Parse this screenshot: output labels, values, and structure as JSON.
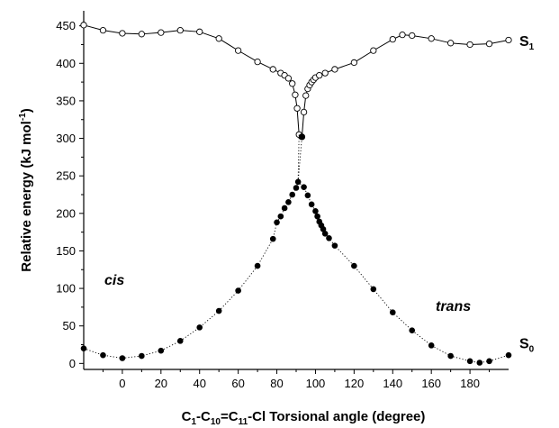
{
  "chart_data": {
    "type": "scatter",
    "xlabel_parts": [
      "C",
      "1",
      "-C",
      "10",
      "=C",
      "11",
      "-Cl  Torsional angle  (degree)"
    ],
    "ylabel_parts": [
      "Relative energy (kJ mol",
      "-1",
      ")"
    ],
    "xlim": [
      -20,
      200
    ],
    "ylim": [
      -8,
      470
    ],
    "xticks": [
      0,
      20,
      40,
      60,
      80,
      100,
      120,
      140,
      160,
      180
    ],
    "yticks": [
      0,
      50,
      100,
      150,
      200,
      250,
      300,
      350,
      400,
      450
    ],
    "grid": false,
    "annotations": {
      "cis": "cis",
      "trans": "trans"
    },
    "series": [
      {
        "name_parts": [
          "S",
          "1"
        ],
        "marker": "open-circle",
        "line": "solid",
        "points": [
          [
            -20,
            451
          ],
          [
            -10,
            444
          ],
          [
            0,
            440
          ],
          [
            10,
            439
          ],
          [
            20,
            441
          ],
          [
            30,
            444
          ],
          [
            40,
            442
          ],
          [
            50,
            433
          ],
          [
            60,
            417
          ],
          [
            70,
            402
          ],
          [
            78,
            392
          ],
          [
            82,
            387
          ],
          [
            84,
            384
          ],
          [
            86,
            380
          ],
          [
            88,
            373
          ],
          [
            89.5,
            358
          ],
          [
            90.5,
            340
          ],
          [
            91.5,
            305
          ],
          [
            93,
            302
          ],
          [
            94,
            335
          ],
          [
            95,
            357
          ],
          [
            96,
            366
          ],
          [
            97,
            371
          ],
          [
            98,
            375
          ],
          [
            99,
            378
          ],
          [
            100,
            381
          ],
          [
            102,
            384
          ],
          [
            105,
            387
          ],
          [
            110,
            392
          ],
          [
            120,
            401
          ],
          [
            130,
            417
          ],
          [
            140,
            432
          ],
          [
            145,
            438
          ],
          [
            150,
            437
          ],
          [
            160,
            433
          ],
          [
            170,
            427
          ],
          [
            180,
            425
          ],
          [
            190,
            426
          ],
          [
            200,
            431
          ]
        ]
      },
      {
        "name_parts": [
          "S",
          "0"
        ],
        "marker": "filled-circle",
        "line": "dotted",
        "points": [
          [
            -20,
            20
          ],
          [
            -10,
            11
          ],
          [
            0,
            7
          ],
          [
            10,
            10
          ],
          [
            20,
            17
          ],
          [
            30,
            30
          ],
          [
            40,
            48
          ],
          [
            50,
            70
          ],
          [
            60,
            97
          ],
          [
            70,
            130
          ],
          [
            78,
            166
          ],
          [
            80,
            188
          ],
          [
            82,
            196
          ],
          [
            84,
            207
          ],
          [
            86,
            215
          ],
          [
            88,
            225
          ],
          [
            90,
            234
          ],
          [
            91,
            242
          ],
          [
            94,
            235
          ],
          [
            96,
            224
          ],
          [
            98,
            212
          ],
          [
            100,
            203
          ],
          [
            101,
            196
          ],
          [
            102,
            189
          ],
          [
            103,
            184
          ],
          [
            104,
            179
          ],
          [
            105,
            173
          ],
          [
            107,
            167
          ],
          [
            110,
            157
          ],
          [
            120,
            130
          ],
          [
            130,
            99
          ],
          [
            140,
            68
          ],
          [
            150,
            44
          ],
          [
            160,
            24
          ],
          [
            170,
            10
          ],
          [
            180,
            3
          ],
          [
            185,
            1
          ],
          [
            190,
            3
          ],
          [
            200,
            11
          ]
        ],
        "bridge_to_s1": [
          [
            91.5,
            305
          ],
          [
            93,
            302
          ]
        ]
      }
    ]
  }
}
